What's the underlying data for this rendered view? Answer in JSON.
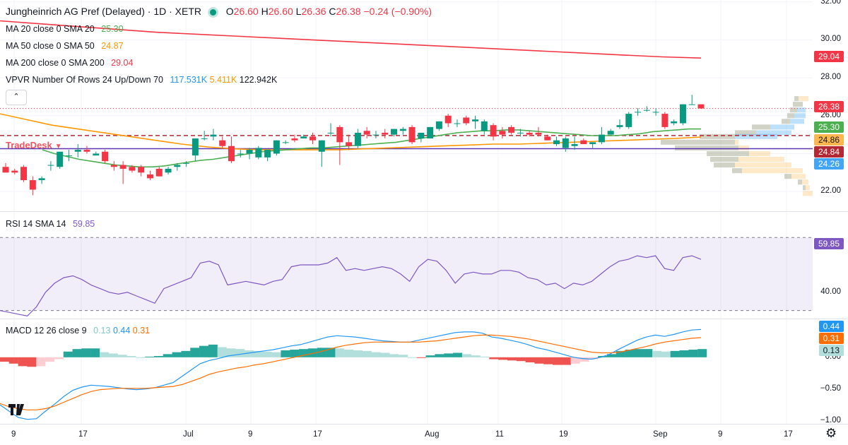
{
  "header": {
    "symbol_title": "Jungheinrich AG Pref (Delayed) · 1D · XETR",
    "o_label": "O",
    "o_value": "26.60",
    "h_label": "H",
    "h_value": "26.60",
    "l_label": "L",
    "l_value": "26.36",
    "c_label": "C",
    "c_value": "26.38",
    "change": "−0.24 (−0.90%)"
  },
  "indicators": {
    "ma20": {
      "label": "MA 20 close 0 SMA 20",
      "value": "25.30",
      "color": "#4caf50"
    },
    "ma50": {
      "label": "MA 50 close 0 SMA 50",
      "value": "24.87",
      "color": "#ff9800"
    },
    "ma200": {
      "label": "MA 200 close 0 SMA 200",
      "value": "29.04",
      "color": "#f23645"
    },
    "vpvr": {
      "label": "VPVR Number Of Rows 24 Up/Down 70",
      "v1": "117.531K",
      "v2": "5.411K",
      "v3": "122.942K"
    },
    "rsi": {
      "label": "RSI 14 SMA 14",
      "value": "59.85"
    },
    "macd": {
      "label": "MACD 12 26 close 9",
      "v1": "0.13",
      "v2": "0.44",
      "v3": "0.31"
    }
  },
  "collapse_glyph": "⌃",
  "watermark": "TradeDesk",
  "price_tags": [
    {
      "text": "29.04",
      "bg": "#f23645",
      "fg": "#ffffff"
    },
    {
      "text": "26.38",
      "bg": "#f23645",
      "fg": "#ffffff"
    },
    {
      "text": "25.30",
      "bg": "#4caf50",
      "fg": "#ffffff"
    },
    {
      "text": "24.86",
      "bg": "#ffb74d",
      "fg": "#131722"
    },
    {
      "text": "24.84",
      "bg": "#b22833",
      "fg": "#ffffff"
    },
    {
      "text": "24.26",
      "bg": "#42a5f5",
      "fg": "#ffffff"
    }
  ],
  "rsi_tag": {
    "text": "59.85",
    "bg": "#7e57c2",
    "fg": "#ffffff"
  },
  "macd_tags": [
    {
      "text": "0.44",
      "bg": "#2196f3",
      "fg": "#ffffff"
    },
    {
      "text": "0.31",
      "bg": "#ff6d00",
      "fg": "#ffffff"
    },
    {
      "text": "0.13",
      "bg": "#b2dfdb",
      "fg": "#131722"
    }
  ],
  "chart_data": {
    "type": "candlestick",
    "price_axis": {
      "ticks": [
        "32.00",
        "30.00",
        "28.00",
        "26.00",
        "24.00",
        "22.00"
      ],
      "range": [
        21,
        32.1
      ]
    },
    "rsi_axis": {
      "ticks": [
        "40.00"
      ],
      "range": [
        26,
        84
      ],
      "band": [
        30,
        70
      ]
    },
    "macd_axis": {
      "ticks": [
        "0.00",
        "−0.50",
        "−1.00"
      ],
      "range": [
        -1.05,
        0.6
      ]
    },
    "x_ticks": [
      "9",
      "17",
      "Jul",
      "9",
      "17",
      "Aug",
      "11",
      "19",
      "Sep",
      "9",
      "17"
    ],
    "candles_ohlc": [
      [
        23.3,
        23.5,
        23.0,
        23.0
      ],
      [
        23.1,
        23.2,
        22.9,
        23.0
      ],
      [
        23.3,
        23.4,
        22.5,
        22.6
      ],
      [
        22.6,
        22.8,
        21.8,
        22.1
      ],
      [
        22.6,
        22.8,
        22.4,
        22.7
      ],
      [
        23.4,
        23.6,
        23.1,
        23.4
      ],
      [
        23.3,
        24.1,
        23.2,
        24.1
      ],
      [
        23.9,
        24.2,
        23.6,
        23.9
      ],
      [
        24.1,
        24.5,
        23.8,
        24.2
      ],
      [
        24.2,
        24.4,
        24.0,
        24.1
      ],
      [
        23.9,
        24.1,
        23.9,
        24.0
      ],
      [
        24.1,
        24.2,
        23.5,
        23.6
      ],
      [
        23.4,
        23.6,
        23.1,
        23.3
      ],
      [
        23.4,
        23.6,
        22.4,
        23.2
      ],
      [
        23.3,
        23.4,
        23.0,
        23.1
      ],
      [
        23.3,
        23.4,
        22.8,
        23.0
      ],
      [
        22.9,
        23.1,
        22.6,
        22.7
      ],
      [
        23.2,
        23.3,
        22.8,
        22.8
      ],
      [
        23.0,
        23.3,
        22.9,
        23.2
      ],
      [
        23.3,
        23.5,
        23.1,
        23.4
      ],
      [
        23.5,
        23.6,
        23.3,
        23.5
      ],
      [
        23.9,
        24.8,
        23.6,
        24.8
      ],
      [
        24.8,
        25.2,
        24.7,
        24.8
      ],
      [
        24.9,
        25.3,
        24.7,
        25.0
      ],
      [
        24.7,
        24.9,
        24.3,
        24.4
      ],
      [
        24.4,
        24.9,
        23.5,
        23.6
      ],
      [
        24.0,
        24.2,
        23.8,
        24.0
      ],
      [
        24.0,
        24.3,
        23.7,
        24.2
      ],
      [
        23.8,
        24.4,
        23.7,
        24.3
      ],
      [
        23.8,
        24.2,
        23.6,
        24.2
      ],
      [
        24.0,
        24.7,
        23.9,
        24.7
      ],
      [
        24.6,
        24.7,
        24.5,
        24.6
      ],
      [
        24.8,
        25.0,
        24.6,
        24.7
      ],
      [
        24.8,
        25.0,
        24.8,
        24.9
      ],
      [
        24.9,
        25.1,
        24.5,
        24.7
      ],
      [
        24.1,
        24.7,
        23.3,
        24.7
      ],
      [
        25.1,
        25.6,
        24.9,
        25.1
      ],
      [
        25.4,
        25.5,
        23.4,
        24.6
      ],
      [
        24.6,
        25.0,
        24.2,
        24.4
      ],
      [
        24.4,
        25.3,
        24.3,
        25.1
      ],
      [
        25.2,
        25.4,
        24.8,
        25.0
      ],
      [
        25.0,
        25.2,
        24.8,
        25.0
      ],
      [
        25.1,
        25.3,
        24.8,
        25.0
      ],
      [
        25.0,
        25.3,
        24.9,
        25.3
      ],
      [
        25.2,
        25.4,
        25.0,
        25.3
      ],
      [
        25.4,
        25.5,
        24.5,
        24.6
      ],
      [
        24.8,
        25.1,
        24.6,
        25.1
      ],
      [
        24.8,
        25.4,
        24.8,
        25.4
      ],
      [
        25.3,
        25.7,
        25.2,
        25.7
      ],
      [
        26.0,
        26.1,
        25.4,
        25.6
      ],
      [
        25.6,
        25.8,
        25.4,
        25.6
      ],
      [
        25.9,
        26.0,
        25.5,
        25.6
      ],
      [
        25.7,
        26.0,
        25.3,
        25.8
      ],
      [
        25.2,
        25.8,
        25.0,
        25.7
      ],
      [
        25.5,
        25.6,
        24.7,
        24.9
      ],
      [
        25.2,
        25.4,
        24.8,
        25.0
      ],
      [
        25.4,
        25.5,
        25.0,
        25.1
      ],
      [
        25.1,
        25.3,
        24.9,
        25.1
      ],
      [
        25.1,
        25.2,
        24.9,
        25.0
      ],
      [
        25.1,
        25.4,
        24.9,
        25.0
      ],
      [
        24.9,
        25.0,
        24.7,
        24.7
      ],
      [
        24.5,
        24.9,
        24.4,
        24.7
      ],
      [
        24.3,
        24.9,
        24.1,
        24.8
      ],
      [
        24.4,
        24.9,
        24.2,
        24.5
      ],
      [
        24.7,
        24.8,
        24.5,
        24.5
      ],
      [
        24.5,
        24.6,
        24.3,
        24.6
      ],
      [
        24.6,
        25.4,
        24.5,
        25.0
      ],
      [
        25.0,
        25.3,
        25.0,
        25.2
      ],
      [
        25.4,
        25.8,
        25.3,
        25.5
      ],
      [
        25.4,
        26.2,
        25.3,
        26.1
      ],
      [
        26.2,
        26.4,
        26.0,
        26.2
      ],
      [
        26.3,
        26.5,
        26.2,
        26.3
      ],
      [
        26.2,
        26.4,
        26.0,
        26.2
      ],
      [
        26.1,
        26.2,
        25.3,
        25.4
      ],
      [
        25.6,
        25.8,
        25.5,
        25.7
      ],
      [
        25.6,
        26.6,
        25.5,
        26.6
      ],
      [
        26.6,
        27.1,
        26.6,
        26.6
      ],
      [
        26.6,
        26.6,
        26.36,
        26.38
      ]
    ],
    "rsi_values": [
      30,
      29,
      28,
      27,
      32,
      40,
      45,
      48,
      49,
      47,
      44,
      42,
      40,
      39,
      40,
      38,
      36,
      34,
      42,
      44,
      46,
      48,
      56,
      57,
      55,
      44,
      45,
      46,
      45,
      44,
      46,
      47,
      54,
      55,
      55,
      55,
      56,
      59,
      52,
      53,
      52,
      53,
      54,
      53,
      50,
      46,
      54,
      58,
      57,
      52,
      45,
      50,
      51,
      50,
      50,
      52,
      52,
      51,
      48,
      47,
      44,
      45,
      42,
      45,
      44,
      46,
      50,
      54,
      57,
      58,
      60,
      59,
      60,
      53,
      52,
      59,
      60,
      58
    ],
    "rsi_sma": 59.85,
    "macd_line": [
      -0.75,
      -0.85,
      -0.95,
      -0.98,
      -0.97,
      -0.85,
      -0.74,
      -0.62,
      -0.52,
      -0.47,
      -0.44,
      -0.45,
      -0.46,
      -0.48,
      -0.5,
      -0.51,
      -0.5,
      -0.48,
      -0.44,
      -0.4,
      -0.3,
      -0.2,
      -0.1,
      -0.05,
      -0.02,
      0.02,
      0.04,
      0.06,
      0.08,
      0.1,
      0.12,
      0.15,
      0.18,
      0.2,
      0.24,
      0.28,
      0.32,
      0.34,
      0.33,
      0.32,
      0.3,
      0.28,
      0.26,
      0.25,
      0.24,
      0.24,
      0.27,
      0.3,
      0.33,
      0.36,
      0.39,
      0.4,
      0.4,
      0.38,
      0.32,
      0.3,
      0.27,
      0.24,
      0.2,
      0.15,
      0.12,
      0.08,
      0.04,
      0.0,
      -0.02,
      -0.03,
      0.0,
      0.05,
      0.13,
      0.2,
      0.27,
      0.32,
      0.35,
      0.33,
      0.36,
      0.4,
      0.43,
      0.44
    ],
    "signal_line": [
      -0.73,
      -0.78,
      -0.81,
      -0.83,
      -0.83,
      -0.81,
      -0.77,
      -0.71,
      -0.65,
      -0.59,
      -0.54,
      -0.51,
      -0.5,
      -0.49,
      -0.49,
      -0.49,
      -0.49,
      -0.48,
      -0.47,
      -0.46,
      -0.43,
      -0.38,
      -0.33,
      -0.27,
      -0.23,
      -0.2,
      -0.17,
      -0.15,
      -0.12,
      -0.1,
      -0.07,
      -0.04,
      -0.01,
      0.02,
      0.05,
      0.08,
      0.12,
      0.16,
      0.19,
      0.21,
      0.23,
      0.24,
      0.24,
      0.24,
      0.24,
      0.24,
      0.24,
      0.25,
      0.26,
      0.28,
      0.3,
      0.32,
      0.34,
      0.35,
      0.35,
      0.34,
      0.33,
      0.31,
      0.29,
      0.26,
      0.23,
      0.2,
      0.17,
      0.14,
      0.11,
      0.08,
      0.07,
      0.07,
      0.08,
      0.11,
      0.14,
      0.17,
      0.21,
      0.24,
      0.26,
      0.28,
      0.3,
      0.31
    ],
    "histogram": [
      -0.07,
      -0.1,
      -0.14,
      -0.15,
      -0.14,
      -0.07,
      -0.03,
      0.09,
      0.13,
      0.14,
      0.14,
      0.08,
      0.06,
      0.04,
      0.02,
      0.0,
      0.01,
      0.02,
      0.05,
      0.08,
      0.1,
      0.15,
      0.18,
      0.2,
      0.16,
      0.14,
      0.13,
      0.11,
      0.1,
      0.09,
      0.08,
      0.11,
      0.12,
      0.13,
      0.14,
      0.15,
      0.15,
      0.14,
      0.12,
      0.11,
      0.1,
      0.08,
      0.07,
      0.05,
      0.04,
      0.0,
      -0.01,
      0.03,
      0.05,
      0.06,
      0.07,
      0.05,
      0.03,
      0.01,
      -0.03,
      -0.04,
      -0.05,
      -0.06,
      -0.08,
      -0.1,
      -0.11,
      -0.12,
      -0.12,
      -0.1,
      -0.07,
      -0.03,
      0.02,
      0.05,
      0.1,
      0.12,
      0.13,
      0.13,
      0.1,
      0.09,
      0.1,
      0.11,
      0.12,
      0.13
    ],
    "ma20_values": [
      24.2,
      24.0,
      23.85,
      23.7,
      23.6,
      23.5,
      23.4,
      23.35,
      23.3,
      23.3,
      23.35,
      23.45,
      23.55,
      23.65,
      23.7,
      23.8,
      23.9,
      24.0,
      24.1,
      24.15,
      24.2,
      24.25,
      24.3,
      24.3,
      24.35,
      24.4,
      24.45,
      24.5,
      24.55,
      24.6,
      24.7,
      24.8,
      24.9,
      25.0,
      25.1,
      25.15,
      25.2,
      25.2,
      25.25,
      25.25,
      25.2,
      25.15,
      25.1,
      25.05,
      25.0,
      24.95,
      24.95,
      24.95,
      25.0,
      25.05,
      25.15,
      25.2,
      25.25,
      25.3,
      25.3
    ],
    "ma50_values": [
      26.1,
      25.8,
      25.5,
      25.3,
      25.1,
      24.9,
      24.7,
      24.5,
      24.35,
      24.25,
      24.2,
      24.2,
      24.2,
      24.2,
      24.25,
      24.3,
      24.35,
      24.4,
      24.45,
      24.5,
      24.5,
      24.55,
      24.6,
      24.65,
      24.7,
      24.75,
      24.8,
      24.87
    ],
    "ma200_values": [
      31.0,
      30.85,
      30.7,
      30.55,
      30.4,
      30.3,
      30.2,
      30.1,
      30.0,
      29.9,
      29.8,
      29.7,
      29.6,
      29.5,
      29.4,
      29.3,
      29.2,
      29.1,
      29.04
    ],
    "support_lines": [
      24.84,
      24.26
    ],
    "vpvr_rows": [
      {
        "price": 26.9,
        "up": 6,
        "down": 20
      },
      {
        "price": 26.6,
        "up": 14,
        "down": 14
      },
      {
        "price": 26.3,
        "up": 22,
        "down": 10
      },
      {
        "price": 26.0,
        "up": 26,
        "down": 10
      },
      {
        "price": 25.7,
        "up": 32,
        "down": 12
      },
      {
        "price": 25.4,
        "up": 60,
        "down": 26
      },
      {
        "price": 25.1,
        "up": 80,
        "down": 30
      },
      {
        "price": 24.9,
        "up": 110,
        "down": 50
      },
      {
        "price": 24.6,
        "up": 105,
        "down": 110
      },
      {
        "price": 24.3,
        "up": 90,
        "down": 105
      },
      {
        "price": 24.0,
        "up": 60,
        "down": 90
      },
      {
        "price": 23.7,
        "up": 40,
        "down": 105
      },
      {
        "price": 23.4,
        "up": 30,
        "down": 110
      },
      {
        "price": 23.1,
        "up": 14,
        "down": 100
      },
      {
        "price": 22.8,
        "up": 10,
        "down": 30
      },
      {
        "price": 22.5,
        "up": 6,
        "down": 15
      },
      {
        "price": 22.2,
        "up": 4,
        "down": 10
      },
      {
        "price": 21.9,
        "up": 0,
        "down": 14
      }
    ]
  }
}
